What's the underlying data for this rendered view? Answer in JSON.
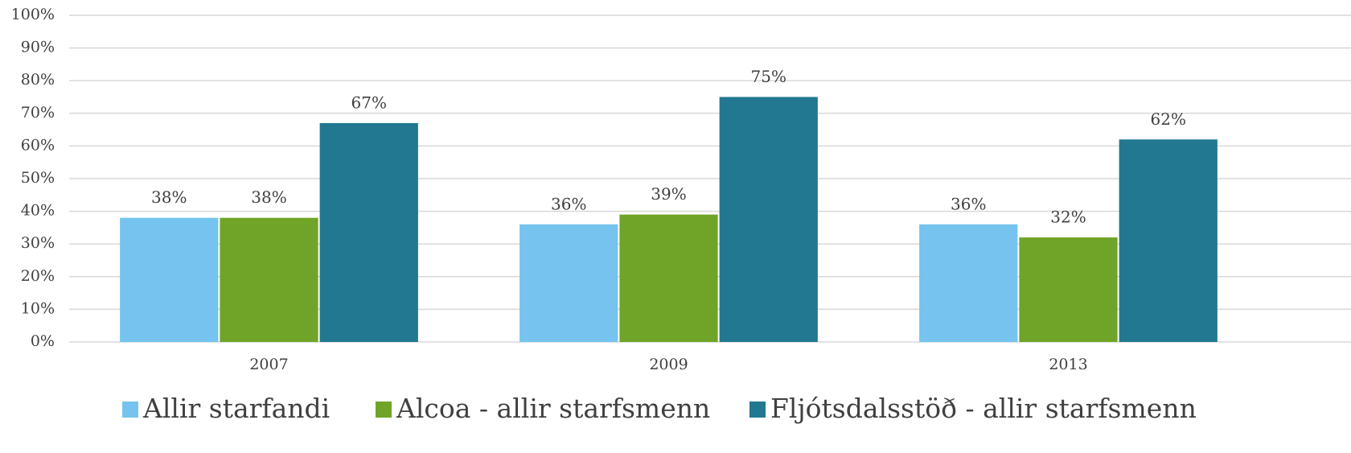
{
  "chart_data": {
    "type": "bar",
    "categories": [
      "2007",
      "2009",
      "2013"
    ],
    "series": [
      {
        "name": "Allir starfandi",
        "color": "#75c3ee",
        "values": [
          38,
          36,
          36
        ],
        "value_labels": [
          "38%",
          "36%",
          "36%"
        ]
      },
      {
        "name": "Alcoa - allir starfsmenn",
        "color": "#70a428",
        "values": [
          38,
          39,
          32
        ],
        "value_labels": [
          "38%",
          "39%",
          "32%"
        ]
      },
      {
        "name": "Fljótsdalsstöð - allir starfsmenn",
        "color": "#217890",
        "values": [
          67,
          75,
          62
        ],
        "value_labels": [
          "67%",
          "75%",
          "62%"
        ]
      }
    ],
    "ylim": [
      0,
      100
    ],
    "yticks": [
      {
        "value": 0,
        "label": "0%"
      },
      {
        "value": 10,
        "label": "10%"
      },
      {
        "value": 20,
        "label": "20%"
      },
      {
        "value": 30,
        "label": "30%"
      },
      {
        "value": 40,
        "label": "40%"
      },
      {
        "value": 50,
        "label": "50%"
      },
      {
        "value": 60,
        "label": "60%"
      },
      {
        "value": 70,
        "label": "70%"
      },
      {
        "value": 80,
        "label": "80%"
      },
      {
        "value": 90,
        "label": "90%"
      },
      {
        "value": 100,
        "label": "100%"
      }
    ],
    "grid": true,
    "legend": "bottom"
  }
}
